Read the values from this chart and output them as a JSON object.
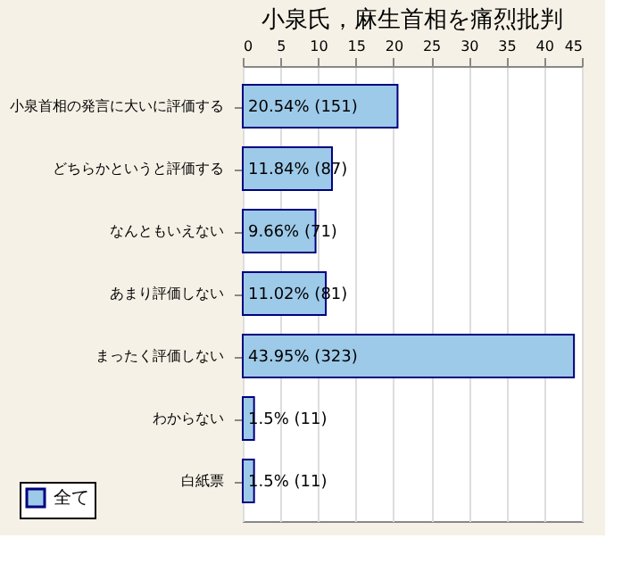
{
  "chart_data": {
    "type": "bar",
    "orientation": "horizontal",
    "title": "小泉氏，麻生首相を痛烈批判",
    "categories": [
      "小泉首相の発言に大いに評価する",
      "どちらかというと評価する",
      "なんともいえない",
      "あまり評価しない",
      "まったく評価しない",
      "わからない",
      "白紙票"
    ],
    "series": [
      {
        "name": "全て",
        "color": "#9ecae9",
        "values": [
          20.54,
          11.84,
          9.66,
          11.02,
          43.95,
          1.5,
          1.5
        ],
        "value_labels": [
          "20.54% (151)",
          "11.84% (87)",
          "9.66% (71)",
          "11.02% (81)",
          "43.95% (323)",
          "1.5% (11)",
          "1.5% (11)"
        ]
      }
    ],
    "xlim": [
      0,
      45
    ],
    "xticks": [
      0,
      5,
      10,
      15,
      20,
      25,
      30,
      35,
      40,
      45
    ],
    "grid": "x",
    "legend": "bottom left"
  }
}
